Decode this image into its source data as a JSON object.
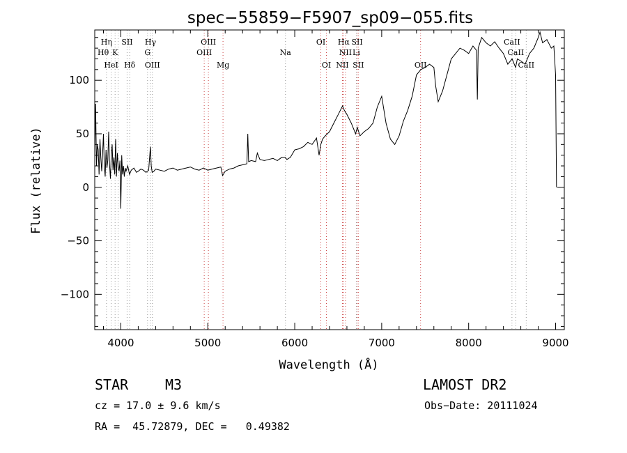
{
  "chart_data": {
    "type": "line",
    "title": "spec−55859−F5907_sp09−055.fits",
    "xlabel": "Wavelength (Å)",
    "ylabel": "Flux (relative)",
    "xlim": [
      3700,
      9100
    ],
    "ylim": [
      -133,
      147
    ],
    "x_ticks": [
      4000,
      5000,
      6000,
      7000,
      8000,
      9000
    ],
    "y_ticks": [
      -100,
      -50,
      0,
      50,
      100
    ],
    "grid": false,
    "series": [
      {
        "color": "#000000",
        "x": [
          3700,
          3710,
          3720,
          3730,
          3740,
          3750,
          3760,
          3770,
          3780,
          3790,
          3800,
          3810,
          3820,
          3830,
          3840,
          3850,
          3860,
          3870,
          3880,
          3890,
          3900,
          3910,
          3920,
          3930,
          3940,
          3950,
          3960,
          3970,
          3980,
          3990,
          4000,
          4010,
          4020,
          4030,
          4040,
          4050,
          4060,
          4080,
          4100,
          4120,
          4150,
          4180,
          4200,
          4230,
          4260,
          4290,
          4320,
          4340,
          4350,
          4360,
          4380,
          4400,
          4450,
          4500,
          4550,
          4600,
          4650,
          4700,
          4750,
          4800,
          4850,
          4900,
          4950,
          5000,
          5050,
          5100,
          5150,
          5170,
          5200,
          5250,
          5300,
          5350,
          5400,
          5450,
          5460,
          5470,
          5500,
          5550,
          5570,
          5600,
          5650,
          5700,
          5750,
          5800,
          5850,
          5890,
          5910,
          5950,
          6000,
          6050,
          6100,
          6150,
          6200,
          6250,
          6280,
          6300,
          6320,
          6350,
          6400,
          6450,
          6500,
          6550,
          6570,
          6600,
          6650,
          6700,
          6720,
          6750,
          6800,
          6850,
          6880,
          6900,
          6950,
          7000,
          7050,
          7100,
          7150,
          7200,
          7250,
          7300,
          7350,
          7400,
          7450,
          7500,
          7550,
          7600,
          7620,
          7650,
          7700,
          7750,
          7800,
          7850,
          7900,
          7950,
          8000,
          8050,
          8090,
          8100,
          8110,
          8150,
          8200,
          8250,
          8300,
          8350,
          8400,
          8450,
          8500,
          8540,
          8560,
          8600,
          8650,
          8700,
          8750,
          8800,
          8820,
          8850,
          8900,
          8950,
          8980,
          9000,
          9010
        ],
        "y": [
          30,
          78,
          20,
          40,
          35,
          12,
          45,
          28,
          15,
          30,
          50,
          20,
          10,
          35,
          18,
          25,
          52,
          22,
          8,
          30,
          40,
          16,
          28,
          12,
          45,
          10,
          32,
          20,
          15,
          25,
          -20,
          30,
          12,
          20,
          10,
          18,
          15,
          20,
          12,
          16,
          18,
          14,
          15,
          17,
          16,
          14,
          16,
          38,
          20,
          14,
          15,
          17,
          16,
          15,
          17,
          18,
          16,
          17,
          18,
          19,
          17,
          16,
          18,
          16,
          17,
          18,
          19,
          11,
          15,
          17,
          18,
          20,
          21,
          22,
          50,
          24,
          25,
          24,
          32,
          26,
          25,
          26,
          27,
          25,
          28,
          28,
          26,
          28,
          35,
          36,
          38,
          42,
          40,
          46,
          30,
          40,
          45,
          48,
          52,
          60,
          68,
          76,
          72,
          68,
          60,
          50,
          56,
          48,
          52,
          55,
          58,
          60,
          75,
          85,
          60,
          45,
          40,
          48,
          62,
          72,
          85,
          105,
          110,
          112,
          115,
          112,
          95,
          80,
          90,
          105,
          120,
          125,
          130,
          128,
          125,
          132,
          128,
          82,
          130,
          140,
          135,
          132,
          136,
          130,
          125,
          115,
          120,
          112,
          120,
          118,
          115,
          125,
          130,
          140,
          145,
          135,
          138,
          130,
          132,
          105,
          0
        ]
      }
    ],
    "annotation_lines": [
      {
        "x": 3835,
        "color": "#999999"
      },
      {
        "x": 3889,
        "color": "#999999"
      },
      {
        "x": 3934,
        "color": "#999999"
      },
      {
        "x": 3969,
        "color": "#999999"
      },
      {
        "x": 4072,
        "color": "#999999"
      },
      {
        "x": 4102,
        "color": "#999999"
      },
      {
        "x": 4307,
        "color": "#999999"
      },
      {
        "x": 4341,
        "color": "#999999"
      },
      {
        "x": 4363,
        "color": "#999999"
      },
      {
        "x": 4959,
        "color": "#cc4444"
      },
      {
        "x": 5007,
        "color": "#cc4444"
      },
      {
        "x": 5175,
        "color": "#cc4444"
      },
      {
        "x": 5893,
        "color": "#999999"
      },
      {
        "x": 6300,
        "color": "#cc4444"
      },
      {
        "x": 6364,
        "color": "#cc4444"
      },
      {
        "x": 6548,
        "color": "#cc4444"
      },
      {
        "x": 6563,
        "color": "#cc4444"
      },
      {
        "x": 6584,
        "color": "#cc4444"
      },
      {
        "x": 6708,
        "color": "#999999"
      },
      {
        "x": 6717,
        "color": "#cc4444"
      },
      {
        "x": 6731,
        "color": "#cc4444"
      },
      {
        "x": 7447,
        "color": "#cc4444"
      },
      {
        "x": 8498,
        "color": "#999999"
      },
      {
        "x": 8542,
        "color": "#999999"
      },
      {
        "x": 8662,
        "color": "#999999"
      }
    ],
    "line_labels": [
      {
        "text": "Hη",
        "x": 3835,
        "row": 0
      },
      {
        "text": "Hθ",
        "x": 3797,
        "row": 1
      },
      {
        "text": "K",
        "x": 3934,
        "row": 1
      },
      {
        "text": "HeI",
        "x": 3889,
        "row": 2
      },
      {
        "text": "SII",
        "x": 4072,
        "row": 0
      },
      {
        "text": "Hδ",
        "x": 4102,
        "row": 2
      },
      {
        "text": "Hγ",
        "x": 4341,
        "row": 0
      },
      {
        "text": "G",
        "x": 4307,
        "row": 1
      },
      {
        "text": "OIII",
        "x": 4363,
        "row": 2
      },
      {
        "text": "OIII",
        "x": 5007,
        "row": 0
      },
      {
        "text": "OIII",
        "x": 4959,
        "row": 1
      },
      {
        "text": "Mg",
        "x": 5175,
        "row": 2
      },
      {
        "text": "Na",
        "x": 5893,
        "row": 1
      },
      {
        "text": "OI",
        "x": 6300,
        "row": 0
      },
      {
        "text": "OI",
        "x": 6364,
        "row": 2
      },
      {
        "text": "Hα",
        "x": 6563,
        "row": 0
      },
      {
        "text": "SII",
        "x": 6717,
        "row": 0
      },
      {
        "text": "NII",
        "x": 6584,
        "row": 1
      },
      {
        "text": "Li",
        "x": 6708,
        "row": 1
      },
      {
        "text": "NII",
        "x": 6548,
        "row": 2
      },
      {
        "text": "SII",
        "x": 6731,
        "row": 2
      },
      {
        "text": "OII",
        "x": 7447,
        "row": 2
      },
      {
        "text": "CaII",
        "x": 8498,
        "row": 0
      },
      {
        "text": "CaII",
        "x": 8542,
        "row": 1
      },
      {
        "text": "CaII",
        "x": 8662,
        "row": 2
      }
    ]
  },
  "info": {
    "class_label": "STAR",
    "subclass_label": "M3",
    "survey": "LAMOST DR2",
    "redshift": "cz = 17.0 ± 9.6 km/s",
    "obs_date": "Obs−Date: 20111024",
    "coords": "RA =  45.72879, DEC =   0.49382"
  }
}
